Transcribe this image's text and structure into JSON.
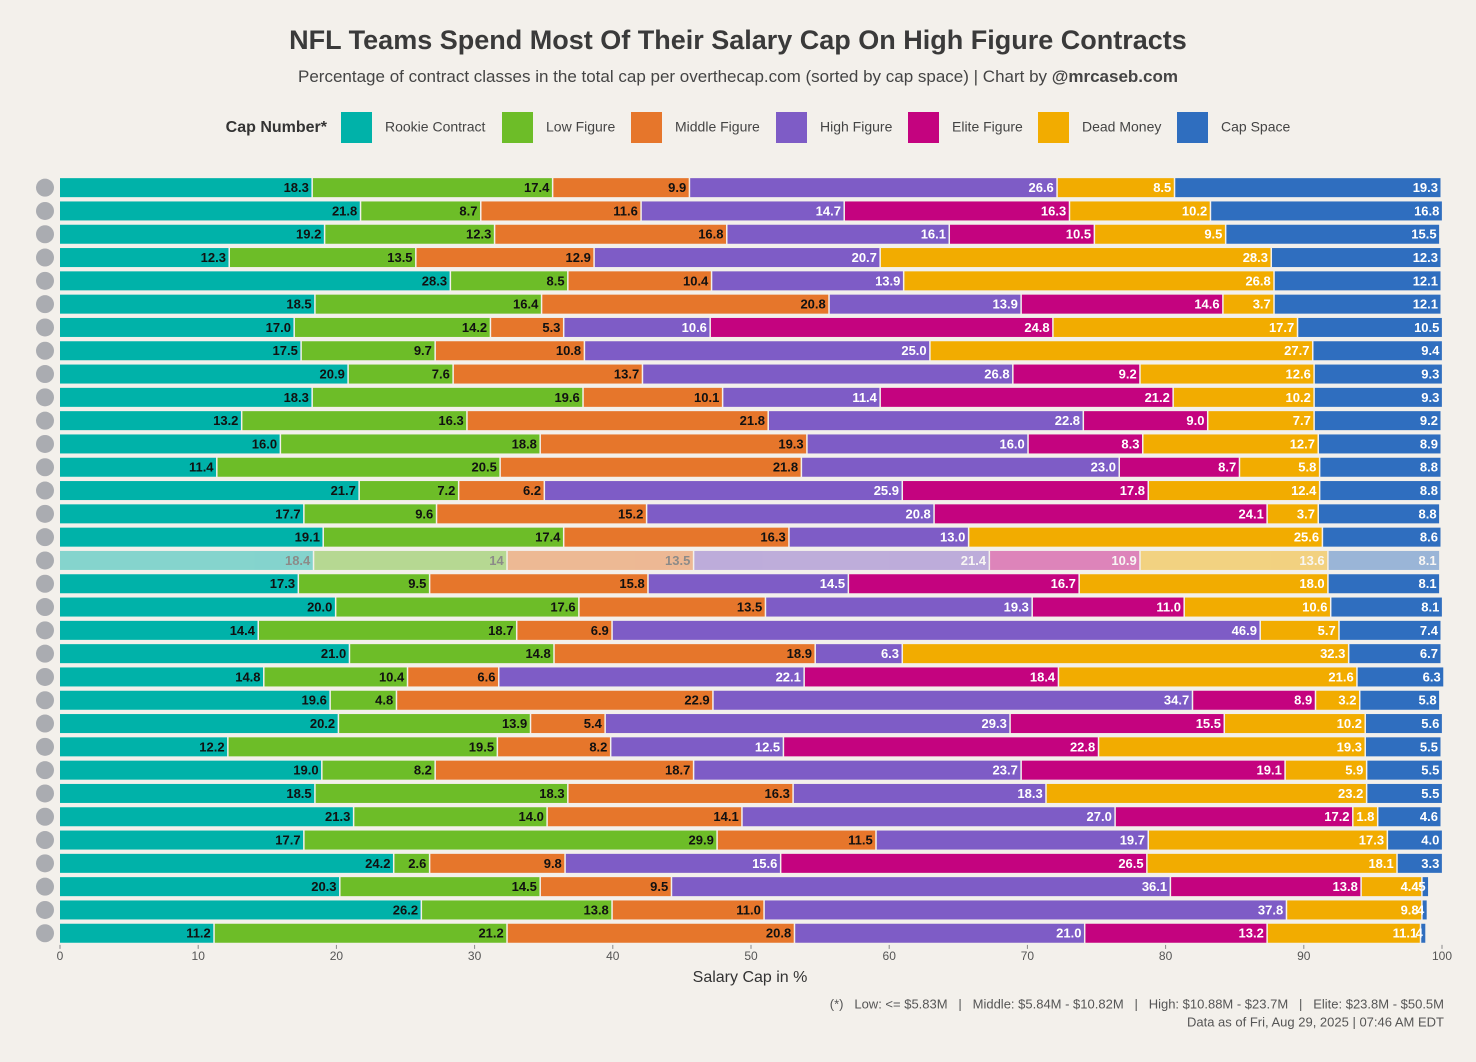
{
  "chart_data": {
    "type": "stacked-bar-horizontal",
    "title": "NFL Teams Spend Most Of Their Salary Cap On High Figure Contracts",
    "subtitle": "Percentage of contract classes in the total cap per overthecap.com (sorted by cap space) | Chart by ",
    "subtitle_author": "@mrcaseb.com",
    "legend_title": "Cap Number*",
    "xlabel": "Salary Cap in %",
    "footnote": "(*)   Low: <= $5.83M   |   Middle: $5.84M - $10.82M   |   High: $10.88M - $23.7M   |   Elite: $23.8M - $50.5M",
    "data_note": "Data as of Fri, Aug 29, 2025 | 07:46 AM EDT",
    "xlim": [
      0,
      100
    ],
    "xticks": [
      0,
      10,
      20,
      30,
      40,
      50,
      60,
      70,
      80,
      90,
      100
    ],
    "grid": false,
    "categories": [
      null,
      null,
      null,
      null,
      null,
      null,
      null,
      null,
      null,
      null,
      null,
      null,
      null,
      null,
      null,
      null,
      null,
      null,
      null,
      null,
      null,
      null,
      null,
      null,
      null,
      null,
      null,
      null,
      null,
      null,
      null,
      null,
      null
    ],
    "series": [
      {
        "name": "Rookie Contract",
        "color": "#00b2a9",
        "values": [
          18.3,
          21.8,
          19.2,
          12.3,
          28.3,
          18.5,
          17.0,
          17.5,
          20.9,
          18.3,
          13.2,
          16.0,
          11.4,
          21.7,
          17.7,
          19.1,
          18.4,
          17.3,
          20.0,
          14.4,
          21.0,
          14.8,
          19.6,
          20.2,
          12.2,
          19.0,
          18.5,
          21.3,
          17.7,
          24.2,
          20.3,
          26.2,
          11.2
        ],
        "value_labels": [
          "18.3",
          "21.8",
          "19.2",
          "12.3",
          "28.3",
          "18.5",
          "17.0",
          "17.5",
          "20.9",
          "18.3",
          "13.2",
          "16.0",
          "11.4",
          "21.7",
          "17.7",
          "19.1",
          "18.4",
          "17.3",
          "20.0",
          "14.4",
          "21.0",
          "14.8",
          "19.6",
          "20.2",
          "12.2",
          "19.0",
          "18.5",
          "21.3",
          "17.7",
          "24.2",
          "20.3",
          "26.2",
          "11.2"
        ]
      },
      {
        "name": "Low Figure",
        "color": "#6dbd28",
        "values": [
          17.4,
          8.7,
          12.3,
          13.5,
          8.5,
          16.4,
          14.2,
          9.7,
          7.6,
          19.6,
          16.3,
          18.8,
          20.5,
          7.2,
          9.6,
          17.4,
          14,
          9.5,
          17.6,
          18.7,
          14.8,
          10.4,
          4.8,
          13.9,
          19.5,
          8.2,
          18.3,
          14.0,
          29.9,
          2.6,
          14.5,
          13.8,
          21.2
        ],
        "value_labels": [
          "17.4",
          "8.7",
          "12.3",
          "13.5",
          "8.5",
          "16.4",
          "14.2",
          "9.7",
          "7.6",
          "19.6",
          "16.3",
          "18.8",
          "20.5",
          "7.2",
          "9.6",
          "17.4",
          "14",
          "9.5",
          "17.6",
          "18.7",
          "14.8",
          "10.4",
          "4.8",
          "13.9",
          "19.5",
          "8.2",
          "18.3",
          "14.0",
          "29.9",
          "2.6",
          "14.5",
          "13.8",
          "21.2"
        ]
      },
      {
        "name": "Middle Figure",
        "color": "#e6762b",
        "values": [
          9.9,
          11.6,
          16.8,
          12.9,
          10.4,
          20.8,
          5.3,
          10.8,
          13.7,
          10.1,
          21.8,
          19.3,
          21.8,
          6.2,
          15.2,
          16.3,
          13.5,
          15.8,
          13.5,
          6.9,
          18.9,
          6.6,
          22.9,
          5.4,
          8.2,
          18.7,
          16.3,
          14.1,
          11.5,
          9.8,
          9.5,
          11.0,
          20.8
        ],
        "value_labels": [
          "9.9",
          "11.6",
          "16.8",
          "12.9",
          "10.4",
          "20.8",
          "5.3",
          "10.8",
          "13.7",
          "10.1",
          "21.8",
          "19.3",
          "21.8",
          "6.2",
          "15.2",
          "16.3",
          "13.5",
          "15.8",
          "13.5",
          "6.9",
          "18.9",
          "6.6",
          "22.9",
          "5.4",
          "8.2",
          "18.7",
          "16.3",
          "14.1",
          "11.5",
          "9.8",
          "9.5",
          "11.0",
          "20.8"
        ]
      },
      {
        "name": "High Figure",
        "color": "#7e5cc6",
        "values": [
          26.6,
          14.7,
          16.1,
          20.7,
          13.9,
          13.9,
          10.6,
          25.0,
          26.8,
          11.4,
          22.8,
          16.0,
          23.0,
          25.9,
          20.8,
          13.0,
          21.4,
          14.5,
          19.3,
          46.9,
          6.3,
          22.1,
          34.7,
          29.3,
          12.5,
          23.7,
          18.3,
          27.0,
          19.7,
          15.6,
          36.1,
          37.8,
          21.0
        ],
        "value_labels": [
          "26.6",
          "14.7",
          "16.1",
          "20.7",
          "13.9",
          "13.9",
          "10.6",
          "25.0",
          "26.8",
          "11.4",
          "22.8",
          "16.0",
          "23.0",
          "25.9",
          "20.8",
          "13.0",
          "21.4",
          "14.5",
          "19.3",
          "46.9",
          "6.3",
          "22.1",
          "34.7",
          "29.3",
          "12.5",
          "23.7",
          "18.3",
          "27.0",
          "19.7",
          "15.6",
          "36.1",
          "37.8",
          "21.0"
        ]
      },
      {
        "name": "Elite Figure",
        "color": "#c4037f",
        "values": [
          null,
          16.3,
          10.5,
          null,
          null,
          14.6,
          24.8,
          null,
          9.2,
          21.2,
          9.0,
          8.3,
          8.7,
          17.8,
          24.1,
          null,
          10.9,
          16.7,
          11.0,
          null,
          null,
          18.4,
          8.9,
          15.5,
          22.8,
          19.1,
          null,
          17.2,
          null,
          26.5,
          13.8,
          null,
          13.2
        ],
        "value_labels": [
          null,
          "16.3",
          "10.5",
          null,
          null,
          "14.6",
          "24.8",
          null,
          "9.2",
          "21.2",
          "9.0",
          "8.3",
          "8.7",
          "17.8",
          "24.1",
          null,
          "10.9",
          "16.7",
          "11.0",
          null,
          null,
          "18.4",
          "8.9",
          "15.5",
          "22.8",
          "19.1",
          null,
          "17.2",
          null,
          "26.5",
          "13.8",
          null,
          "13.2"
        ]
      },
      {
        "name": "Dead Money",
        "color": "#f2ac00",
        "values": [
          8.5,
          10.2,
          9.5,
          28.3,
          26.8,
          3.7,
          17.7,
          27.7,
          12.6,
          10.2,
          7.7,
          12.7,
          5.8,
          12.4,
          3.7,
          25.6,
          13.6,
          18.0,
          10.6,
          5.7,
          32.3,
          21.6,
          3.2,
          10.2,
          19.3,
          5.9,
          23.2,
          1.8,
          17.3,
          18.1,
          4.4,
          9.8,
          11.1
        ],
        "value_labels": [
          "8.5",
          "10.2",
          "9.5",
          "28.3",
          "26.8",
          "3.7",
          "17.7",
          "27.7",
          "12.6",
          "10.2",
          "7.7",
          "12.7",
          "5.8",
          "12.4",
          "3.7",
          "25.6",
          "13.6",
          "18.0",
          "10.6",
          "5.7",
          "32.3",
          "21.6",
          "3.2",
          "10.2",
          "19.3",
          "5.9",
          "23.2",
          "1.8",
          "17.3",
          "18.1",
          "4.4",
          "9.8",
          "11.1"
        ]
      },
      {
        "name": "Cap Space",
        "color": "#2f6ebf",
        "values": [
          19.3,
          16.8,
          15.5,
          12.3,
          12.1,
          12.1,
          10.5,
          9.4,
          9.3,
          9.3,
          9.2,
          8.9,
          8.8,
          8.8,
          8.8,
          8.6,
          8.1,
          8.1,
          8.1,
          7.4,
          6.7,
          6.3,
          5.8,
          5.6,
          5.5,
          5.5,
          5.5,
          4.6,
          4.0,
          3.3,
          0.5,
          0.4,
          0.4
        ],
        "value_labels": [
          "19.3",
          "16.8",
          "15.5",
          "12.3",
          "12.1",
          "12.1",
          "10.5",
          "9.4",
          "9.3",
          "9.3",
          "9.2",
          "8.9",
          "8.8",
          "8.8",
          "8.8",
          "8.6",
          "8.1",
          "8.1",
          "8.1",
          "7.4",
          "6.7",
          "6.3",
          "5.8",
          "5.6",
          "5.5",
          "5.5",
          "5.5",
          "4.6",
          "4.0",
          "3.3",
          ".5",
          ".4",
          ".4"
        ]
      }
    ]
  }
}
